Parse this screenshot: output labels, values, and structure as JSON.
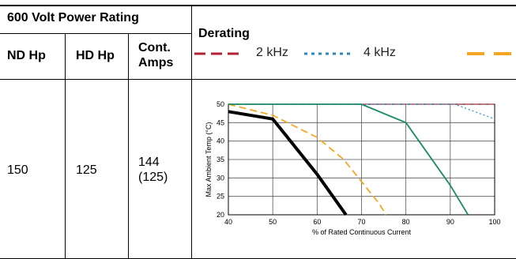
{
  "table": {
    "header_group": "600 Volt Power Rating",
    "derating_header": "Derating",
    "col_nd": "ND Hp",
    "col_hd": "HD Hp",
    "col_cont_line1": "Cont.",
    "col_cont_line2": "Amps",
    "row": {
      "nd_hp": "150",
      "hd_hp": "125",
      "cont_amps": "144",
      "cont_amps_hd": "(125)"
    }
  },
  "legend": [
    {
      "label": "2 kHz",
      "color": "#b22234",
      "dash": "dashed"
    },
    {
      "label": "4 kHz",
      "color": "#2e86c1",
      "dash": "dotted"
    },
    {
      "label": "",
      "color": "#f5a623",
      "dash": "dashed"
    }
  ],
  "chart_data": {
    "type": "line",
    "xlabel": "% of Rated Continuous Current",
    "ylabel": "Max Ambient Temp (°C)",
    "xlim": [
      40,
      100
    ],
    "ylim": [
      20,
      50
    ],
    "xticks": [
      40,
      50,
      60,
      70,
      80,
      90,
      100
    ],
    "yticks": [
      20,
      25,
      30,
      35,
      40,
      45,
      50
    ],
    "grid": true,
    "series": [
      {
        "name": "2 kHz",
        "color": "#b22234",
        "style": "dashed",
        "width": 1.2,
        "points": [
          [
            40,
            50
          ],
          [
            100,
            50
          ]
        ]
      },
      {
        "name": "4 kHz",
        "color": "#2e86c1",
        "style": "dotted",
        "width": 1.2,
        "points": [
          [
            40,
            50
          ],
          [
            91,
            50
          ],
          [
            100,
            46
          ]
        ]
      },
      {
        "name": "",
        "color": "#f5a623",
        "style": "dashed",
        "width": 1.8,
        "points": [
          [
            40,
            50
          ],
          [
            50,
            47
          ],
          [
            60,
            41
          ],
          [
            66,
            35
          ],
          [
            70,
            29
          ],
          [
            74,
            23
          ],
          [
            75.5,
            20
          ]
        ]
      },
      {
        "name": "",
        "color": "#1a8a6a",
        "style": "solid",
        "width": 1.8,
        "points": [
          [
            40,
            50
          ],
          [
            70,
            50
          ],
          [
            80,
            45
          ],
          [
            90,
            28
          ],
          [
            94,
            20
          ]
        ]
      },
      {
        "name": "",
        "color": "#000000",
        "style": "solid",
        "width": 4,
        "points": [
          [
            40,
            48
          ],
          [
            50,
            46
          ],
          [
            60,
            31
          ],
          [
            66.5,
            20
          ]
        ]
      }
    ]
  }
}
